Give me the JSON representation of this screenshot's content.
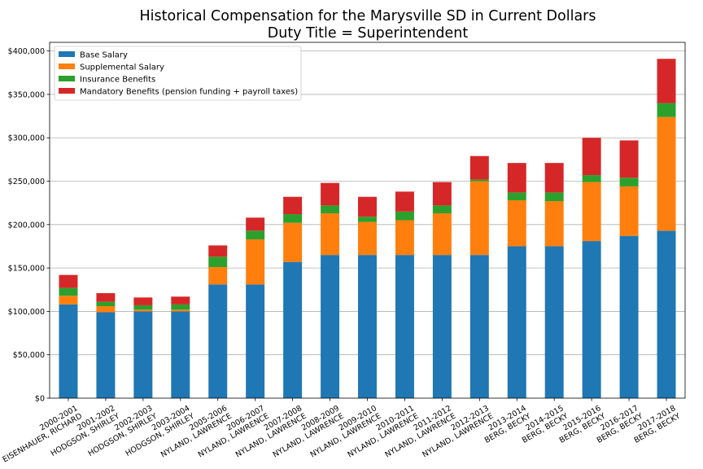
{
  "chart_data": {
    "type": "bar",
    "stacked": true,
    "title": "Historical Compensation for the Marysville SD in Current Dollars",
    "subtitle": "Duty Title = Superintendent",
    "xlabel": "",
    "ylabel": "",
    "ylim": [
      0,
      410000
    ],
    "yticks": [
      0,
      50000,
      100000,
      150000,
      200000,
      250000,
      300000,
      350000,
      400000
    ],
    "ytick_labels": [
      "$0",
      "$50,000",
      "$100,000",
      "$150,000",
      "$200,000",
      "$250,000",
      "$300,000",
      "$350,000",
      "$400,000"
    ],
    "grid": "horizontal",
    "legend_position": "top-left",
    "categories": [
      [
        "2000-2001",
        "EISENHAUER, RICHARD"
      ],
      [
        "2001-2002",
        "HODGSON, SHIRLEY"
      ],
      [
        "2002-2003",
        "HODGSON, SHIRLEY"
      ],
      [
        "2003-2004",
        "HODGSON, SHIRLEY"
      ],
      [
        "2005-2006",
        "NYLAND, LAWRENCE"
      ],
      [
        "2006-2007",
        "NYLAND, LAWRENCE"
      ],
      [
        "2007-2008",
        "NYLAND, LAWRENCE"
      ],
      [
        "2008-2009",
        "NYLAND, LAWRENCE"
      ],
      [
        "2009-2010",
        "NYLAND, LAWRENCE"
      ],
      [
        "2010-2011",
        "NYLAND, LAWRENCE"
      ],
      [
        "2011-2012",
        "NYLAND, LAWRENCE"
      ],
      [
        "2012-2013",
        "NYLAND, LAWRENCE"
      ],
      [
        "2013-2014",
        "BERG, BECKY"
      ],
      [
        "2014-2015",
        "BERG, BECKY"
      ],
      [
        "2015-2016",
        "BERG, BECKY"
      ],
      [
        "2016-2017",
        "BERG, BECKY"
      ],
      [
        "2017-2018",
        "BERG, BECKY"
      ]
    ],
    "series": [
      {
        "name": "Base Salary",
        "color": "#1f77b4",
        "values": [
          108000,
          99000,
          100000,
          100000,
          131000,
          131000,
          157000,
          165000,
          165000,
          165000,
          165000,
          165000,
          175000,
          175000,
          181000,
          187000,
          193000
        ]
      },
      {
        "name": "Supplemental Salary",
        "color": "#ff7f0e",
        "values": [
          10000,
          7000,
          2000,
          2000,
          20000,
          52000,
          45000,
          48000,
          38000,
          40000,
          48000,
          85000,
          53000,
          52000,
          68000,
          57000,
          131000
        ]
      },
      {
        "name": "Insurance Benefits",
        "color": "#2ca02c",
        "values": [
          9000,
          5000,
          5000,
          6000,
          12000,
          10000,
          10000,
          9000,
          6000,
          10000,
          9000,
          2000,
          9000,
          10000,
          8000,
          10000,
          16000
        ]
      },
      {
        "name": "Mandatory Benefits (pension funding + payroll taxes)",
        "color": "#d62728",
        "values": [
          15000,
          10000,
          9000,
          9000,
          13000,
          15000,
          20000,
          26000,
          23000,
          23000,
          27000,
          27000,
          34000,
          34000,
          43000,
          43000,
          51000
        ]
      }
    ]
  }
}
